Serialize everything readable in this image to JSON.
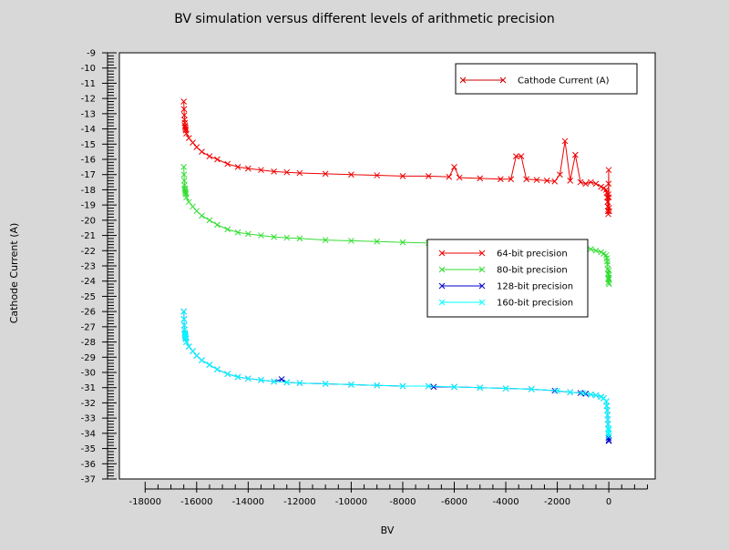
{
  "chart_data": {
    "type": "line",
    "title": "BV simulation versus different levels of arithmetic precision",
    "xlabel": "BV",
    "ylabel": "Cathode Current (A)",
    "xlim": [
      -19000,
      1800
    ],
    "ylim": [
      -37,
      -9
    ],
    "x_ticks": [
      -18000,
      -16000,
      -14000,
      -12000,
      -10000,
      -8000,
      -6000,
      -4000,
      -2000,
      0
    ],
    "y_ticks": [
      -9,
      -10,
      -11,
      -12,
      -13,
      -14,
      -15,
      -16,
      -17,
      -18,
      -19,
      -20,
      -21,
      -22,
      -23,
      -24,
      -25,
      -26,
      -27,
      -28,
      -29,
      -30,
      -31,
      -32,
      -33,
      -34,
      -35,
      -36,
      -37
    ],
    "grid": false,
    "legend_top": {
      "position": "top-right",
      "entries": [
        {
          "label": "Cathode Current (A)",
          "color": "#cc0000"
        }
      ]
    },
    "legend_main": {
      "position": "center-right",
      "entries": [
        {
          "label": "64-bit precision",
          "color": "#ee0000"
        },
        {
          "label": "80-bit precision",
          "color": "#33dd33"
        },
        {
          "label": "128-bit precision",
          "color": "#0000cc"
        },
        {
          "label": "160-bit precision",
          "color": "#00ffff"
        }
      ]
    },
    "series": [
      {
        "name": "64-bit precision",
        "color": "#ee0000",
        "x": [
          -16500,
          -16490,
          -16480,
          -16470,
          -16460,
          -16450,
          -16440,
          -16430,
          -16420,
          -16400,
          -16300,
          -16150,
          -16000,
          -15800,
          -15500,
          -15200,
          -14800,
          -14400,
          -14000,
          -13500,
          -13000,
          -12500,
          -12000,
          -11000,
          -10000,
          -9000,
          -8000,
          -7000,
          -6200,
          -6000,
          -5800,
          -5000,
          -4200,
          -3800,
          -3600,
          -3400,
          -3200,
          -2800,
          -2400,
          -2100,
          -1900,
          -1700,
          -1500,
          -1300,
          -1100,
          -900,
          -700,
          -500,
          -300,
          -200,
          -100,
          -80,
          -60,
          -50,
          -40,
          -30,
          -20,
          -15,
          -10,
          -5,
          0,
          5,
          10
        ],
        "y": [
          -12.2,
          -12.7,
          -13.1,
          -13.4,
          -13.6,
          -13.8,
          -13.9,
          -14.0,
          -14.1,
          -14.3,
          -14.6,
          -14.9,
          -15.2,
          -15.5,
          -15.8,
          -16.0,
          -16.3,
          -16.5,
          -16.6,
          -16.7,
          -16.8,
          -16.85,
          -16.9,
          -16.95,
          -17.0,
          -17.05,
          -17.1,
          -17.1,
          -17.15,
          -16.5,
          -17.2,
          -17.25,
          -17.3,
          -17.3,
          -15.8,
          -15.8,
          -17.3,
          -17.35,
          -17.4,
          -17.45,
          -17.0,
          -14.8,
          -17.4,
          -15.7,
          -17.5,
          -17.6,
          -17.5,
          -17.6,
          -17.8,
          -17.9,
          -18.0,
          -18.2,
          -18.5,
          -18.8,
          -19.1,
          -19.4,
          -19.6,
          -18.3,
          -17.6,
          -16.7,
          -18.5,
          -19.2,
          -19.4
        ]
      },
      {
        "name": "80-bit precision",
        "color": "#33dd33",
        "x": [
          -16500,
          -16490,
          -16480,
          -16470,
          -16460,
          -16450,
          -16440,
          -16430,
          -16420,
          -16400,
          -16300,
          -16150,
          -16000,
          -15800,
          -15500,
          -15200,
          -14800,
          -14400,
          -14000,
          -13500,
          -13000,
          -12500,
          -12000,
          -11000,
          -10000,
          -9000,
          -8000,
          -7000,
          -6000,
          -5000,
          -4000,
          -3000,
          -2000,
          -1500,
          -1000,
          -700,
          -500,
          -300,
          -200,
          -100,
          -80,
          -60,
          -50,
          -40,
          -30,
          -20,
          -15,
          -10,
          -5,
          0,
          5,
          10
        ],
        "y": [
          -16.5,
          -17.0,
          -17.4,
          -17.7,
          -17.9,
          -18.0,
          -18.1,
          -18.2,
          -18.3,
          -18.5,
          -18.8,
          -19.1,
          -19.4,
          -19.7,
          -20.0,
          -20.3,
          -20.6,
          -20.8,
          -20.9,
          -21.0,
          -21.1,
          -21.15,
          -21.2,
          -21.3,
          -21.35,
          -21.4,
          -21.45,
          -21.5,
          -21.5,
          -21.55,
          -21.6,
          -21.65,
          -21.7,
          -21.75,
          -21.8,
          -21.9,
          -22.0,
          -22.1,
          -22.2,
          -22.3,
          -22.5,
          -22.7,
          -22.9,
          -23.2,
          -23.5,
          -23.8,
          -24.1,
          -23.9,
          -23.6,
          -23.3,
          -23.8,
          -24.2
        ]
      },
      {
        "name": "128-bit precision",
        "color": "#0000cc",
        "x": [
          -16500,
          -16490,
          -16480,
          -16470,
          -16460,
          -16450,
          -16440,
          -16430,
          -16420,
          -16400,
          -16300,
          -16150,
          -16000,
          -15800,
          -15500,
          -15200,
          -14800,
          -14400,
          -14000,
          -13500,
          -13000,
          -12700,
          -12500,
          -12000,
          -11000,
          -10000,
          -9000,
          -8000,
          -7000,
          -6800,
          -6000,
          -5000,
          -4000,
          -3000,
          -2100,
          -1500,
          -1100,
          -900,
          -700,
          -500,
          -300,
          -200,
          -100,
          -80,
          -60,
          -50,
          -40,
          -30,
          -20,
          -15,
          -10,
          -5,
          0
        ],
        "y": [
          -26.0,
          -26.5,
          -26.9,
          -27.2,
          -27.4,
          -27.5,
          -27.6,
          -27.7,
          -27.8,
          -28.0,
          -28.3,
          -28.6,
          -28.9,
          -29.2,
          -29.5,
          -29.8,
          -30.1,
          -30.3,
          -30.4,
          -30.5,
          -30.6,
          -30.45,
          -30.65,
          -30.7,
          -30.75,
          -30.8,
          -30.85,
          -30.9,
          -30.9,
          -30.95,
          -30.95,
          -31.0,
          -31.05,
          -31.1,
          -31.2,
          -31.3,
          -31.35,
          -31.4,
          -31.45,
          -31.5,
          -31.6,
          -31.7,
          -31.9,
          -32.2,
          -32.5,
          -32.8,
          -33.1,
          -33.4,
          -33.7,
          -34.0,
          -34.3,
          -34.45,
          -34.5
        ]
      },
      {
        "name": "160-bit precision",
        "color": "#00ffff",
        "x": [
          -16500,
          -16490,
          -16480,
          -16470,
          -16460,
          -16450,
          -16440,
          -16430,
          -16420,
          -16400,
          -16300,
          -16150,
          -16000,
          -15800,
          -15500,
          -15200,
          -14800,
          -14400,
          -14000,
          -13500,
          -13000,
          -12500,
          -12000,
          -11000,
          -10000,
          -9000,
          -8000,
          -7000,
          -6000,
          -5000,
          -4000,
          -3000,
          -2000,
          -1500,
          -1000,
          -700,
          -500,
          -300,
          -200,
          -100,
          -80,
          -60,
          -50,
          -40,
          -30,
          -20,
          -15,
          -10,
          -5,
          0
        ],
        "y": [
          -26.0,
          -26.5,
          -26.9,
          -27.2,
          -27.4,
          -27.5,
          -27.6,
          -27.7,
          -27.8,
          -28.0,
          -28.3,
          -28.6,
          -28.9,
          -29.2,
          -29.5,
          -29.8,
          -30.1,
          -30.3,
          -30.4,
          -30.5,
          -30.6,
          -30.65,
          -30.7,
          -30.75,
          -30.8,
          -30.85,
          -30.9,
          -30.9,
          -30.95,
          -31.0,
          -31.05,
          -31.1,
          -31.2,
          -31.3,
          -31.35,
          -31.45,
          -31.5,
          -31.6,
          -31.7,
          -31.9,
          -32.2,
          -32.5,
          -32.8,
          -33.1,
          -33.4,
          -33.7,
          -34.0,
          -34.2,
          -34.0,
          -33.8
        ]
      }
    ]
  }
}
